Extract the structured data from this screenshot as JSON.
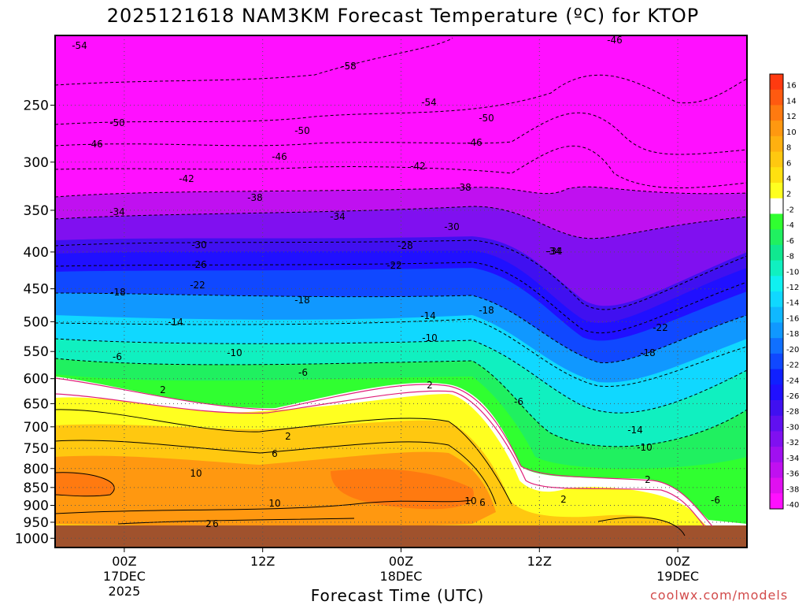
{
  "chart_data": {
    "type": "heatmap",
    "title": "2025121618 NAM3KM Forecast Temperature (ºC) for KTOP",
    "xlabel": "Forecast Time (UTC)",
    "ylabel": "",
    "y_scale": "log-pressure",
    "y_ticks": [
      "250",
      "300",
      "350",
      "400",
      "450",
      "500",
      "550",
      "600",
      "650",
      "700",
      "750",
      "800",
      "850",
      "900",
      "950",
      "1000"
    ],
    "x_ticks": [
      {
        "time": "2025-12-17T00Z",
        "lines": [
          "00Z",
          "17DEC",
          "2025"
        ]
      },
      {
        "time": "2025-12-17T12Z",
        "lines": [
          "12Z"
        ]
      },
      {
        "time": "2025-12-18T00Z",
        "lines": [
          "00Z",
          "18DEC"
        ]
      },
      {
        "time": "2025-12-18T12Z",
        "lines": [
          "12Z"
        ]
      },
      {
        "time": "2025-12-19T00Z",
        "lines": [
          "00Z",
          "19DEC"
        ]
      }
    ],
    "x_range": [
      "2025-12-16T18Z",
      "2025-12-19T06Z"
    ],
    "y_range_hPa": [
      200,
      1030
    ],
    "grid": true,
    "colorbar": {
      "position": "right",
      "labels": [
        "16",
        "14",
        "12",
        "10",
        "8",
        "6",
        "4",
        "2",
        "-2",
        "-4",
        "-6",
        "-8",
        "-10",
        "-12",
        "-14",
        "-16",
        "-18",
        "-20",
        "-22",
        "-24",
        "-26",
        "-28",
        "-30",
        "-32",
        "-34",
        "-36",
        "-38",
        "-40"
      ],
      "colors": [
        "#ff3a10",
        "#ff5a10",
        "#ff7a10",
        "#ff9810",
        "#ffb010",
        "#ffc810",
        "#ffe010",
        "#ffff20",
        "#ffffff",
        "#30ff30",
        "#20f060",
        "#10e890",
        "#10f0c0",
        "#10f0f0",
        "#10d8ff",
        "#10b8ff",
        "#1098ff",
        "#1070ff",
        "#1048ff",
        "#1020ff",
        "#2010ff",
        "#4010f0",
        "#6010f0",
        "#8010f0",
        "#a010f0",
        "#c010f0",
        "#e010f0",
        "#ff10ff"
      ]
    },
    "contour_labels": [
      "-54",
      "-58",
      "-46",
      "-54",
      "-50",
      "-50",
      "-50",
      "-46",
      "-46",
      "-46",
      "-42",
      "-42",
      "-38",
      "-38",
      "-34",
      "-34",
      "-34",
      "-30",
      "-30",
      "-28",
      "-26",
      "-22",
      "-22",
      "-34",
      "-18",
      "-18",
      "-18",
      "-14",
      "-14",
      "-22",
      "-10",
      "-10",
      "-18",
      "-6",
      "-6",
      "-6",
      "2",
      "2",
      "-14",
      "-10",
      "2",
      "6",
      "10",
      "2",
      "-6",
      "10",
      "10",
      "6",
      "2",
      "2",
      "6"
    ]
  },
  "watermark": "coolwx.com/models"
}
